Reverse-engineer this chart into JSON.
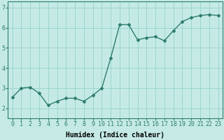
{
  "x": [
    0,
    1,
    2,
    3,
    4,
    5,
    6,
    7,
    8,
    9,
    10,
    11,
    12,
    13,
    14,
    15,
    16,
    17,
    18,
    19,
    20,
    21,
    22,
    23
  ],
  "y": [
    2.55,
    3.0,
    3.05,
    2.75,
    2.15,
    2.35,
    2.5,
    2.5,
    2.35,
    2.65,
    3.0,
    4.5,
    6.15,
    6.15,
    5.4,
    5.5,
    5.55,
    5.35,
    5.85,
    6.3,
    6.5,
    6.6,
    6.65,
    6.6
  ],
  "line_color": "#2e7d6e",
  "marker": "D",
  "marker_size": 2.0,
  "linewidth": 1.0,
  "bg_color": "#c5eae5",
  "grid_color": "#9dd4ce",
  "xlabel": "Humidex (Indice chaleur)",
  "xlabel_fontsize": 7,
  "tick_fontsize": 6,
  "xlim": [
    -0.5,
    23.5
  ],
  "ylim": [
    1.5,
    7.3
  ],
  "yticks": [
    2,
    3,
    4,
    5,
    6,
    7
  ],
  "xticks": [
    0,
    1,
    2,
    3,
    4,
    5,
    6,
    7,
    8,
    9,
    10,
    11,
    12,
    13,
    14,
    15,
    16,
    17,
    18,
    19,
    20,
    21,
    22,
    23
  ]
}
